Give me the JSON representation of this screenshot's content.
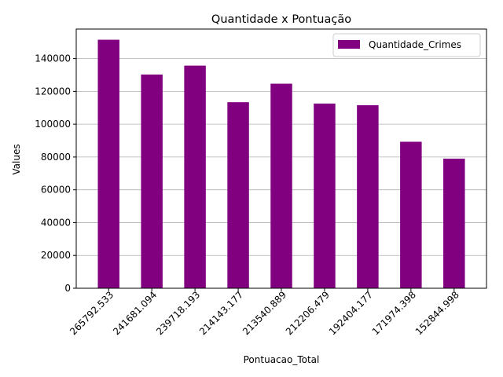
{
  "chart_data": {
    "type": "bar",
    "title": "Quantidade x Pontuação",
    "xlabel": "Pontuacao_Total",
    "ylabel": "Values",
    "categories": [
      "265792.533",
      "241681.094",
      "239718.193",
      "214143.177",
      "213540.889",
      "212206.479",
      "192404.177",
      "171974.398",
      "152844.998"
    ],
    "series": [
      {
        "name": "Quantidade_Crimes",
        "color": "#800080",
        "values": [
          151500,
          130300,
          135700,
          113400,
          124700,
          112600,
          111600,
          89300,
          79000
        ]
      }
    ],
    "ylim": [
      0,
      158000
    ],
    "yticks": [
      0,
      20000,
      40000,
      60000,
      80000,
      100000,
      120000,
      140000
    ],
    "ytick_labels": [
      "0",
      "20000",
      "40000",
      "60000",
      "80000",
      "100000",
      "120000",
      "140000"
    ],
    "grid": "y",
    "legend_position": "upper-right"
  }
}
